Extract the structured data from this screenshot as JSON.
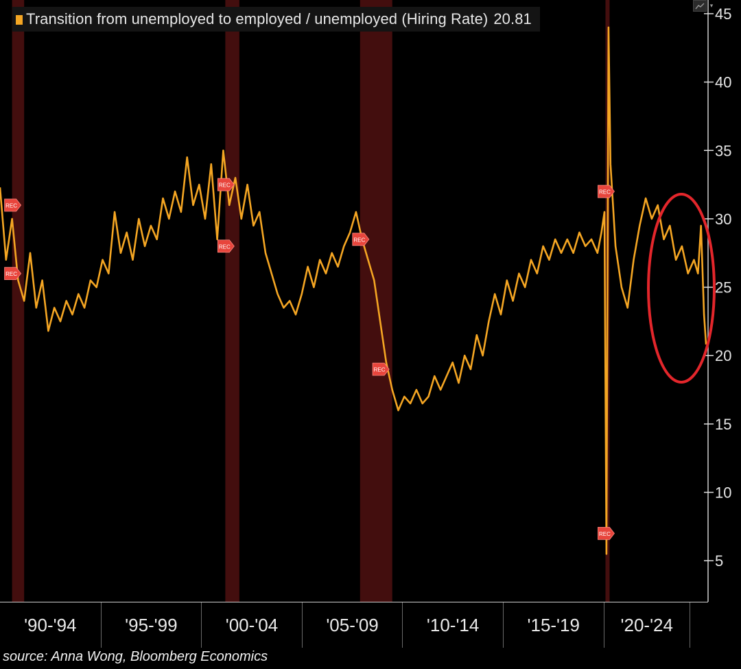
{
  "legend": {
    "label": "Transition from unemployed to employed / unemployed (Hiring Rate)",
    "last_value": "20.81",
    "swatch_color": "#f5a623"
  },
  "toolbar": {
    "chart_icon": "line-chart-icon",
    "menu_icon": "chevron-down-icon"
  },
  "source": "source: Anna Wong, Bloomberg Economics",
  "annotation": {
    "shape": "red-ellipse",
    "color": "#e3262b"
  },
  "recession_marker_label": "REC",
  "colors": {
    "line": "#f5a623",
    "recession_band": "#4a1010",
    "marker": "#e8453c"
  },
  "chart_data": {
    "type": "line",
    "title": "Transition from unemployed to employed / unemployed (Hiring Rate)",
    "last_value": 20.81,
    "ylim": [
      2,
      46
    ],
    "yticks": [
      5,
      10,
      15,
      20,
      25,
      30,
      35,
      40,
      45
    ],
    "xlim": [
      1990.0,
      2025.2
    ],
    "x_period_labels": [
      "'90-'94",
      "'95-'99",
      "'00-'04",
      "'05-'09",
      "'10-'14",
      "'15-'19",
      "'20-'24"
    ],
    "recessions": [
      {
        "start": 1990.6,
        "end": 1991.2
      },
      {
        "start": 2001.2,
        "end": 2001.9
      },
      {
        "start": 2007.9,
        "end": 2009.5
      },
      {
        "start": 2020.1,
        "end": 2020.3
      }
    ],
    "rec_markers": [
      {
        "x": 1990.6,
        "y": 31.0
      },
      {
        "x": 1990.6,
        "y": 26.0
      },
      {
        "x": 2001.2,
        "y": 32.5
      },
      {
        "x": 2001.2,
        "y": 28.0
      },
      {
        "x": 2007.9,
        "y": 28.5
      },
      {
        "x": 2008.9,
        "y": 19.0
      },
      {
        "x": 2020.1,
        "y": 32.0
      },
      {
        "x": 2020.1,
        "y": 7.0
      }
    ],
    "series": [
      {
        "points": [
          [
            1990.0,
            32.3
          ],
          [
            1990.3,
            27.0
          ],
          [
            1990.6,
            30.0
          ],
          [
            1990.9,
            25.5
          ],
          [
            1991.2,
            24.0
          ],
          [
            1991.5,
            27.5
          ],
          [
            1991.8,
            23.5
          ],
          [
            1992.1,
            25.5
          ],
          [
            1992.4,
            21.8
          ],
          [
            1992.7,
            23.5
          ],
          [
            1993.0,
            22.5
          ],
          [
            1993.3,
            24.0
          ],
          [
            1993.6,
            23.0
          ],
          [
            1993.9,
            24.5
          ],
          [
            1994.2,
            23.5
          ],
          [
            1994.5,
            25.5
          ],
          [
            1994.8,
            25.0
          ],
          [
            1995.1,
            27.0
          ],
          [
            1995.4,
            26.0
          ],
          [
            1995.7,
            30.5
          ],
          [
            1996.0,
            27.5
          ],
          [
            1996.3,
            29.0
          ],
          [
            1996.6,
            27.0
          ],
          [
            1996.9,
            30.0
          ],
          [
            1997.2,
            28.0
          ],
          [
            1997.5,
            29.5
          ],
          [
            1997.8,
            28.5
          ],
          [
            1998.1,
            31.5
          ],
          [
            1998.4,
            30.0
          ],
          [
            1998.7,
            32.0
          ],
          [
            1999.0,
            30.5
          ],
          [
            1999.3,
            34.5
          ],
          [
            1999.6,
            31.0
          ],
          [
            1999.9,
            32.5
          ],
          [
            2000.2,
            30.0
          ],
          [
            2000.5,
            34.0
          ],
          [
            2000.8,
            28.5
          ],
          [
            2001.1,
            35.0
          ],
          [
            2001.4,
            31.0
          ],
          [
            2001.7,
            33.0
          ],
          [
            2002.0,
            30.0
          ],
          [
            2002.3,
            32.5
          ],
          [
            2002.6,
            29.5
          ],
          [
            2002.9,
            30.5
          ],
          [
            2003.2,
            27.5
          ],
          [
            2003.5,
            26.0
          ],
          [
            2003.8,
            24.5
          ],
          [
            2004.1,
            23.5
          ],
          [
            2004.4,
            24.0
          ],
          [
            2004.7,
            23.0
          ],
          [
            2005.0,
            24.5
          ],
          [
            2005.3,
            26.5
          ],
          [
            2005.6,
            25.0
          ],
          [
            2005.9,
            27.0
          ],
          [
            2006.2,
            26.0
          ],
          [
            2006.5,
            27.5
          ],
          [
            2006.8,
            26.5
          ],
          [
            2007.1,
            28.0
          ],
          [
            2007.4,
            29.0
          ],
          [
            2007.7,
            30.5
          ],
          [
            2008.0,
            28.5
          ],
          [
            2008.3,
            27.0
          ],
          [
            2008.6,
            25.5
          ],
          [
            2008.9,
            22.5
          ],
          [
            2009.2,
            19.5
          ],
          [
            2009.5,
            17.5
          ],
          [
            2009.8,
            16.0
          ],
          [
            2010.1,
            17.0
          ],
          [
            2010.4,
            16.5
          ],
          [
            2010.7,
            17.5
          ],
          [
            2011.0,
            16.5
          ],
          [
            2011.3,
            17.0
          ],
          [
            2011.6,
            18.5
          ],
          [
            2011.9,
            17.5
          ],
          [
            2012.2,
            18.5
          ],
          [
            2012.5,
            19.5
          ],
          [
            2012.8,
            18.0
          ],
          [
            2013.1,
            20.0
          ],
          [
            2013.4,
            19.0
          ],
          [
            2013.7,
            21.5
          ],
          [
            2014.0,
            20.0
          ],
          [
            2014.3,
            22.5
          ],
          [
            2014.6,
            24.5
          ],
          [
            2014.9,
            23.0
          ],
          [
            2015.2,
            25.5
          ],
          [
            2015.5,
            24.0
          ],
          [
            2015.8,
            26.0
          ],
          [
            2016.1,
            25.0
          ],
          [
            2016.4,
            27.0
          ],
          [
            2016.7,
            26.0
          ],
          [
            2017.0,
            28.0
          ],
          [
            2017.3,
            27.0
          ],
          [
            2017.6,
            28.5
          ],
          [
            2017.9,
            27.5
          ],
          [
            2018.2,
            28.5
          ],
          [
            2018.5,
            27.5
          ],
          [
            2018.8,
            29.0
          ],
          [
            2019.1,
            28.0
          ],
          [
            2019.4,
            28.5
          ],
          [
            2019.7,
            27.5
          ],
          [
            2019.9,
            29.0
          ],
          [
            2020.05,
            30.5
          ],
          [
            2020.15,
            5.5
          ],
          [
            2020.25,
            44.0
          ],
          [
            2020.35,
            34.0
          ],
          [
            2020.6,
            28.0
          ],
          [
            2020.9,
            25.0
          ],
          [
            2021.2,
            23.5
          ],
          [
            2021.5,
            27.0
          ],
          [
            2021.8,
            29.5
          ],
          [
            2022.1,
            31.5
          ],
          [
            2022.4,
            30.0
          ],
          [
            2022.7,
            31.0
          ],
          [
            2023.0,
            28.5
          ],
          [
            2023.3,
            29.5
          ],
          [
            2023.6,
            27.0
          ],
          [
            2023.9,
            28.0
          ],
          [
            2024.2,
            26.0
          ],
          [
            2024.5,
            27.0
          ],
          [
            2024.7,
            26.0
          ],
          [
            2024.85,
            29.5
          ],
          [
            2025.0,
            23.0
          ],
          [
            2025.1,
            20.81
          ]
        ]
      }
    ]
  }
}
